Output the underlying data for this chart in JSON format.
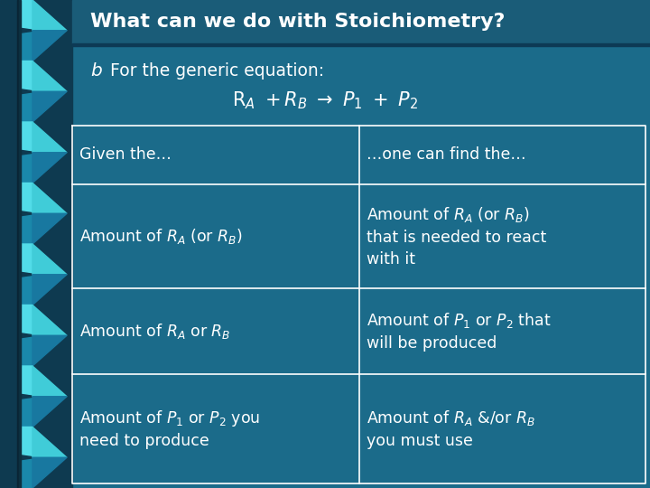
{
  "title": "What can we do with Stoichiometry?",
  "bg_color": "#1b6b8a",
  "title_bar_color": "#1a5c78",
  "title_color": "#ffffff",
  "table_text_color": "#ffffff",
  "table_line_color": "#ffffff",
  "bullet_char": "b",
  "bullet_text": "For the generic equation:",
  "col1_header": "Given the…",
  "col2_header": "…one can find the…",
  "rows_left": [
    "Amount of $R_A$ (or $R_B$)",
    "Amount of $R_A$ or $R_B$",
    "Amount of $P_1$ or $P_2$ you\nneed to produce"
  ],
  "rows_right": [
    "Amount of $R_A$ (or $R_B$)\nthat is needed to react\nwith it",
    "Amount of $P_1$ or $P_2$ that\nwill be produced",
    "Amount of $R_A$ &/or $R_B$\nyou must use"
  ],
  "title_fontsize": 16,
  "body_fontsize": 12.5,
  "eq_fontsize": 15
}
